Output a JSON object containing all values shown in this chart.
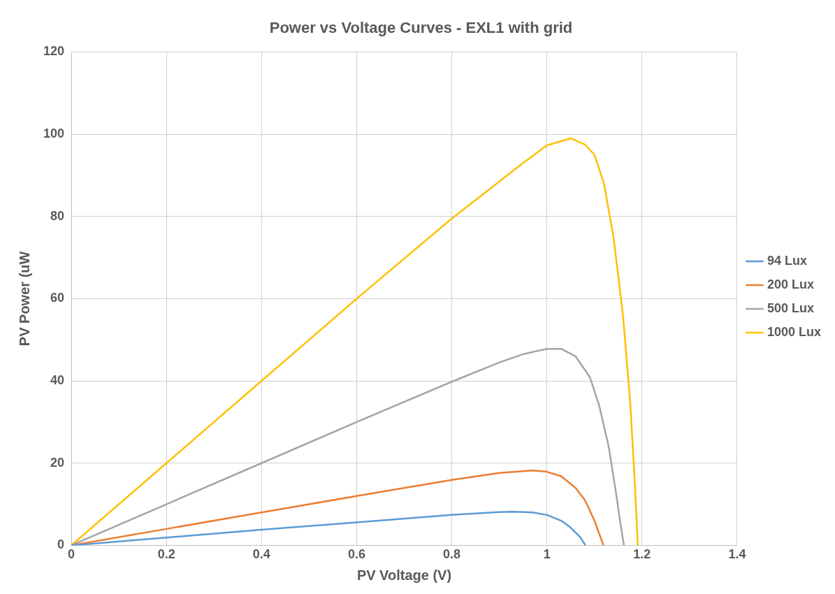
{
  "chart_data": {
    "type": "line",
    "title": "Power vs Voltage Curves - EXL1 with grid",
    "xlabel": "PV Voltage (V)",
    "ylabel": "PV Power (uW",
    "xlim": [
      0,
      1.4
    ],
    "xticks": [
      0,
      0.2,
      0.4,
      0.6,
      0.8,
      1,
      1.2,
      1.4
    ],
    "ylim": [
      0,
      120
    ],
    "yticks": [
      0,
      20,
      40,
      60,
      80,
      100,
      120
    ],
    "grid": true,
    "legend": "right",
    "marker": "none",
    "line_style": "solid",
    "series": [
      {
        "name": "94 Lux",
        "color": "#5b9bd5",
        "x": [
          0,
          0.2,
          0.4,
          0.6,
          0.8,
          0.9,
          0.93,
          0.97,
          1.0,
          1.03,
          1.05,
          1.07,
          1.081
        ],
        "values": [
          0,
          1.9,
          3.8,
          5.6,
          7.4,
          8.1,
          8.2,
          8,
          7.4,
          6,
          4.3,
          2,
          0
        ]
      },
      {
        "name": "200 Lux",
        "color": "#ed7d31",
        "x": [
          0,
          0.2,
          0.4,
          0.6,
          0.8,
          0.9,
          0.97,
          1.0,
          1.03,
          1.06,
          1.08,
          1.1,
          1.119
        ],
        "values": [
          0,
          4,
          8,
          12,
          15.9,
          17.6,
          18.2,
          17.9,
          16.8,
          14,
          11,
          6,
          0
        ]
      },
      {
        "name": "500 Lux",
        "color": "#a5a5a5",
        "x": [
          0,
          0.2,
          0.4,
          0.6,
          0.8,
          0.9,
          0.95,
          1.0,
          1.03,
          1.06,
          1.09,
          1.11,
          1.13,
          1.145,
          1.155,
          1.162
        ],
        "values": [
          0,
          10,
          20,
          30,
          39.8,
          44.5,
          46.5,
          47.8,
          47.8,
          46,
          41,
          34,
          24,
          13,
          5,
          0
        ]
      },
      {
        "name": "1000 Lux",
        "color": "#ffc000",
        "x": [
          0,
          0.2,
          0.4,
          0.6,
          0.8,
          0.9,
          0.95,
          1.0,
          1.05,
          1.08,
          1.1,
          1.12,
          1.14,
          1.16,
          1.175,
          1.185,
          1.191
        ],
        "values": [
          0,
          20,
          40,
          60,
          79.5,
          88.5,
          93,
          97.3,
          99,
          97.5,
          95,
          88,
          75,
          56,
          35,
          15,
          0
        ]
      }
    ]
  }
}
